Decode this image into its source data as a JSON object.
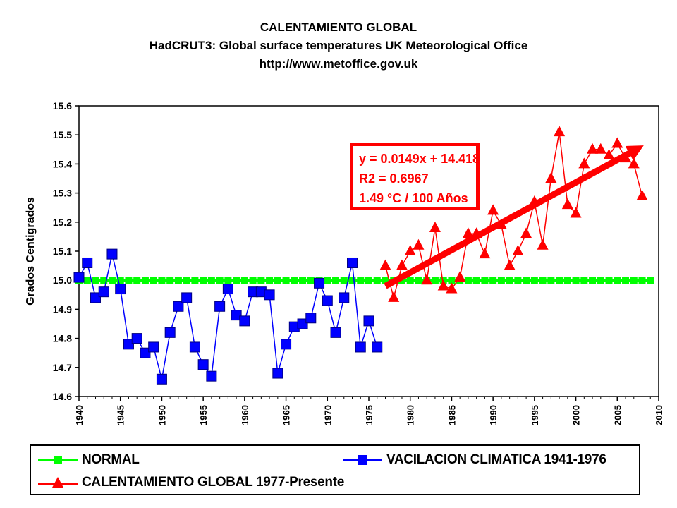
{
  "header": {
    "title": "CALENTAMIENTO GLOBAL",
    "subtitle": "HadCRUT3: Global surface temperatures UK Meteorological Office",
    "url": "http://www.metoffice.gov.uk"
  },
  "annotation": {
    "line1": "y = 0.0149x + 14.418",
    "line2": "R2 = 0.6967",
    "line3": "1.49 °C / 100 Años"
  },
  "legend": {
    "normal": "NORMAL",
    "vacilacion": "VACILACION CLIMATICA 1941-1976",
    "calentamiento": "CALENTAMIENTO GLOBAL 1977-Presente"
  },
  "colors": {
    "normal": "#00ff00",
    "vacilacion": "#0000ff",
    "calentamiento": "#ff0000",
    "trend": "#ff0000"
  },
  "chart_data": {
    "type": "line",
    "ylabel": "Grados Centigrados",
    "xlabel": "",
    "xlim": [
      1940,
      2010
    ],
    "ylim": [
      14.6,
      15.6
    ],
    "xticks": [
      1940,
      1945,
      1950,
      1955,
      1960,
      1965,
      1970,
      1975,
      1980,
      1985,
      1990,
      1995,
      2000,
      2005,
      2010
    ],
    "yticks": [
      14.6,
      14.7,
      14.8,
      14.9,
      15.0,
      15.1,
      15.2,
      15.3,
      15.4,
      15.5,
      15.6
    ],
    "grid": false,
    "legend_position": "bottom",
    "series": [
      {
        "name": "NORMAL",
        "marker": "square",
        "x": [
          1940,
          1941,
          1942,
          1943,
          1944,
          1945,
          1946,
          1947,
          1948,
          1949,
          1950,
          1951,
          1952,
          1953,
          1954,
          1955,
          1956,
          1957,
          1958,
          1959,
          1960,
          1961,
          1962,
          1963,
          1964,
          1965,
          1966,
          1967,
          1968,
          1969,
          1970,
          1971,
          1972,
          1973,
          1974,
          1975,
          1976,
          1977,
          1978,
          1979,
          1980,
          1981,
          1982,
          1983,
          1984,
          1985,
          1986,
          1987,
          1988,
          1989,
          1990,
          1991,
          1992,
          1993,
          1994,
          1995,
          1996,
          1997,
          1998,
          1999,
          2000,
          2001,
          2002,
          2003,
          2004,
          2005,
          2006,
          2007,
          2008,
          2009
        ],
        "y": [
          15.0,
          15.0,
          15.0,
          15.0,
          15.0,
          15.0,
          15.0,
          15.0,
          15.0,
          15.0,
          15.0,
          15.0,
          15.0,
          15.0,
          15.0,
          15.0,
          15.0,
          15.0,
          15.0,
          15.0,
          15.0,
          15.0,
          15.0,
          15.0,
          15.0,
          15.0,
          15.0,
          15.0,
          15.0,
          15.0,
          15.0,
          15.0,
          15.0,
          15.0,
          15.0,
          15.0,
          15.0,
          15.0,
          15.0,
          15.0,
          15.0,
          15.0,
          15.0,
          15.0,
          15.0,
          15.0,
          15.0,
          15.0,
          15.0,
          15.0,
          15.0,
          15.0,
          15.0,
          15.0,
          15.0,
          15.0,
          15.0,
          15.0,
          15.0,
          15.0,
          15.0,
          15.0,
          15.0,
          15.0,
          15.0,
          15.0,
          15.0,
          15.0,
          15.0,
          15.0
        ]
      },
      {
        "name": "VACILACION CLIMATICA 1941-1976",
        "marker": "square",
        "x": [
          1940,
          1941,
          1942,
          1943,
          1944,
          1945,
          1946,
          1947,
          1948,
          1949,
          1950,
          1951,
          1952,
          1953,
          1954,
          1955,
          1956,
          1957,
          1958,
          1959,
          1960,
          1961,
          1962,
          1963,
          1964,
          1965,
          1966,
          1967,
          1968,
          1969,
          1970,
          1971,
          1972,
          1973,
          1974,
          1975,
          1976
        ],
        "y": [
          15.01,
          15.06,
          14.94,
          14.96,
          15.09,
          14.97,
          14.78,
          14.8,
          14.75,
          14.77,
          14.66,
          14.82,
          14.91,
          14.94,
          14.77,
          14.71,
          14.67,
          14.91,
          14.97,
          14.88,
          14.86,
          14.96,
          14.96,
          14.95,
          14.68,
          14.78,
          14.84,
          14.85,
          14.87,
          14.99,
          14.93,
          14.82,
          14.94,
          15.06,
          14.77,
          14.86,
          14.77
        ]
      },
      {
        "name": "CALENTAMIENTO GLOBAL 1977-Presente",
        "marker": "triangle",
        "x": [
          1977,
          1978,
          1979,
          1980,
          1981,
          1982,
          1983,
          1984,
          1985,
          1986,
          1987,
          1988,
          1989,
          1990,
          1991,
          1992,
          1993,
          1994,
          1995,
          1996,
          1997,
          1998,
          1999,
          2000,
          2001,
          2002,
          2003,
          2004,
          2005,
          2006,
          2007,
          2008
        ],
        "y": [
          15.05,
          14.94,
          15.05,
          15.1,
          15.12,
          15.0,
          15.18,
          14.98,
          14.97,
          15.01,
          15.16,
          15.16,
          15.09,
          15.24,
          15.19,
          15.05,
          15.1,
          15.16,
          15.27,
          15.12,
          15.35,
          15.51,
          15.26,
          15.23,
          15.4,
          15.45,
          15.45,
          15.43,
          15.47,
          15.42,
          15.4,
          15.29
        ]
      }
    ],
    "trendline": {
      "name": "y = 0.0149x + 14.418",
      "x": [
        1977,
        2008
      ],
      "y": [
        14.98,
        15.46
      ]
    }
  }
}
